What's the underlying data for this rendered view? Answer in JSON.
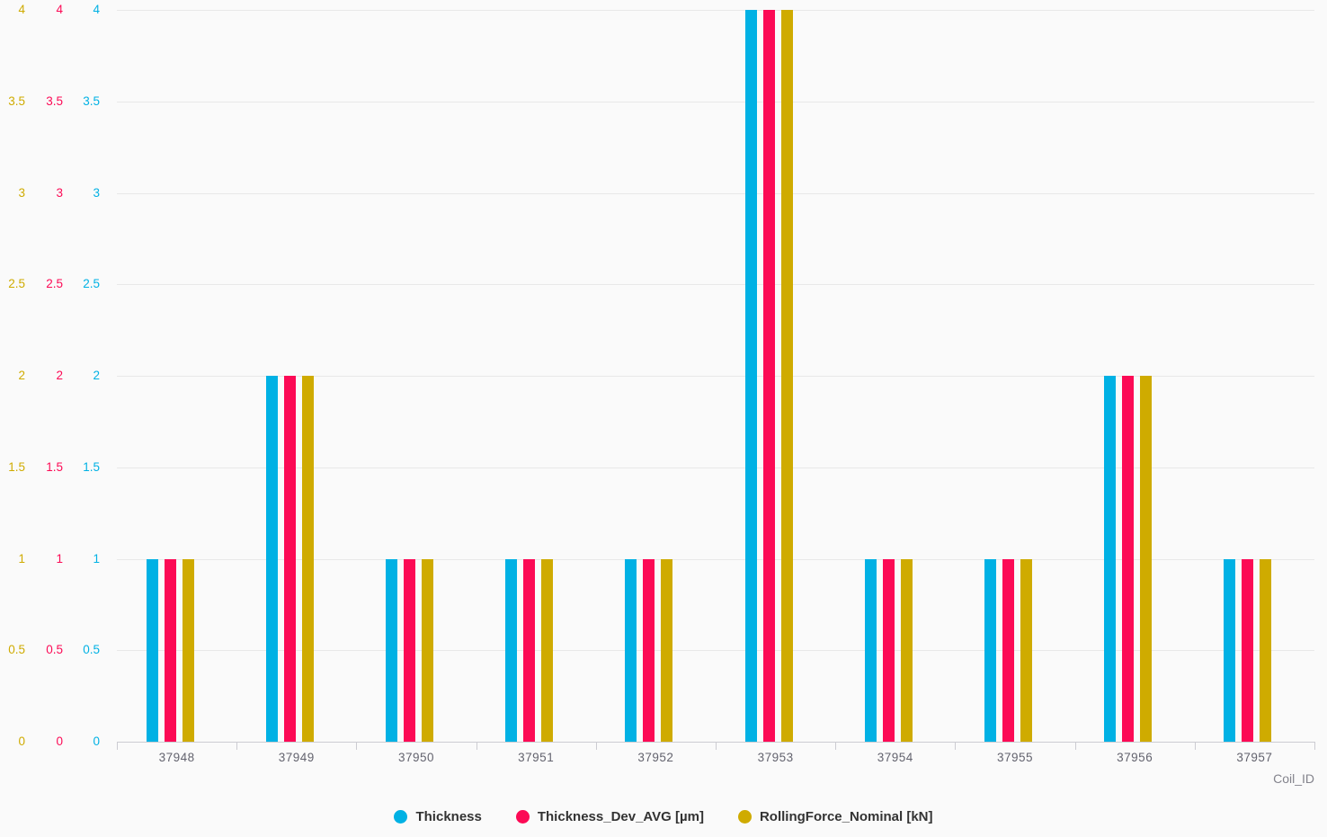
{
  "chart_data": {
    "type": "bar",
    "title": "",
    "xlabel": "Coil_ID",
    "ylabel": "",
    "categories": [
      "37948",
      "37949",
      "37950",
      "37951",
      "37952",
      "37953",
      "37954",
      "37955",
      "37956",
      "37957"
    ],
    "series": [
      {
        "name": "Thickness",
        "color": "#00b1e4",
        "values": [
          1,
          2,
          1,
          1,
          1,
          4,
          1,
          1,
          2,
          1
        ]
      },
      {
        "name": "Thickness_Dev_AVG [µm]",
        "color": "#fc0a55",
        "values": [
          1,
          2,
          1,
          1,
          1,
          4,
          1,
          1,
          2,
          1
        ]
      },
      {
        "name": "RollingForce_Nominal [kN]",
        "color": "#cfab00",
        "values": [
          1,
          2,
          1,
          1,
          1,
          4,
          1,
          1,
          2,
          1
        ]
      }
    ],
    "y_ticks": [
      0,
      0.5,
      1,
      1.5,
      2,
      2.5,
      3,
      3.5,
      4
    ],
    "ylim": [
      0,
      4
    ],
    "grid": true,
    "legend_position": "bottom",
    "y_axes_left_to_right": [
      "RollingForce_Nominal [kN]",
      "Thickness_Dev_AVG [µm]",
      "Thickness"
    ]
  },
  "colors": {
    "background": "#fafafa",
    "gridline": "#e8e8e8",
    "axis_line": "#ccccd2",
    "x_tick_label": "#63636e",
    "axis_title": "#83838c",
    "legend_text": "#333333"
  }
}
